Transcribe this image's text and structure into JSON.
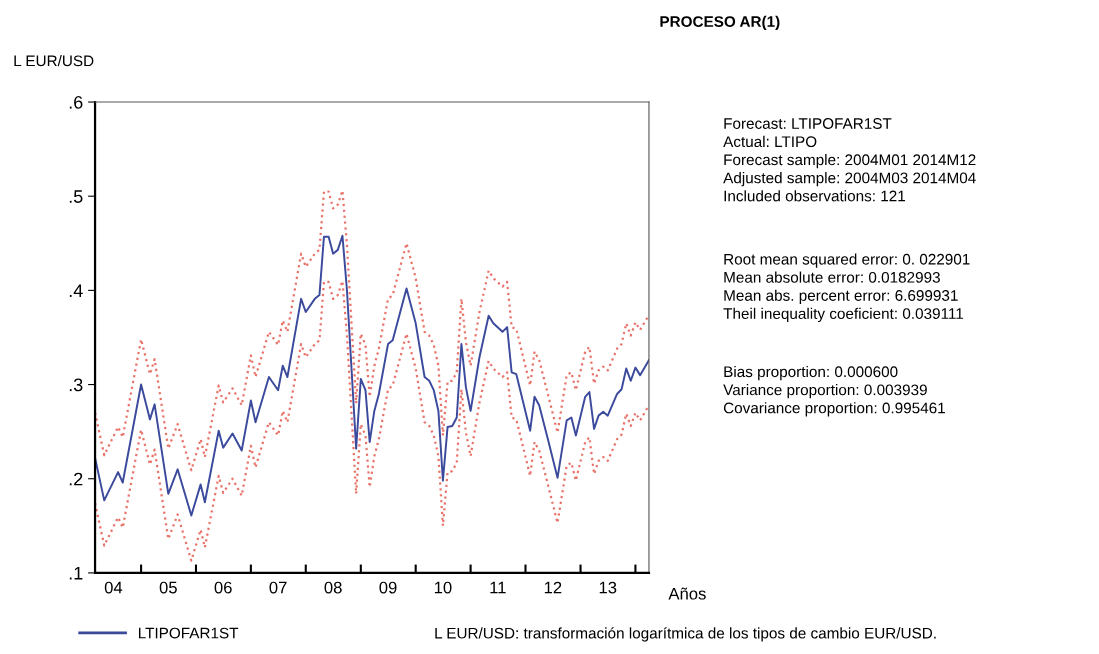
{
  "chart_data": {
    "type": "line",
    "title": "PROCESO AR(1)",
    "ylabel": "L EUR/USD",
    "xlabel": "Años",
    "x": [
      "2004-03",
      "2004-05",
      "2004-08",
      "2004-09",
      "2005-01",
      "2005-03",
      "2005-04",
      "2005-07",
      "2005-09",
      "2005-12",
      "2006-02",
      "2006-03",
      "2006-06",
      "2006-07",
      "2006-09",
      "2006-11",
      "2007-01",
      "2007-02",
      "2007-05",
      "2007-07",
      "2007-08",
      "2007-09",
      "2007-12",
      "2008-01",
      "2008-03",
      "2008-04",
      "2008-05",
      "2008-06",
      "2008-07",
      "2008-08",
      "2008-09",
      "2008-10",
      "2008-12",
      "2009-01",
      "2009-02",
      "2009-03",
      "2009-04",
      "2009-05",
      "2009-07",
      "2009-08",
      "2009-11",
      "2010-01",
      "2010-03",
      "2010-04",
      "2010-05",
      "2010-06",
      "2010-07",
      "2010-08",
      "2010-09",
      "2010-10",
      "2010-11",
      "2010-12",
      "2011-01",
      "2011-03",
      "2011-05",
      "2011-06",
      "2011-08",
      "2011-09",
      "2011-10",
      "2011-11",
      "2012-02",
      "2012-03",
      "2012-04",
      "2012-06",
      "2012-08",
      "2012-10",
      "2012-11",
      "2012-12",
      "2013-02",
      "2013-03",
      "2013-04",
      "2013-05",
      "2013-06",
      "2013-07",
      "2013-09",
      "2013-10",
      "2013-11",
      "2013-12",
      "2014-01",
      "2014-02",
      "2014-04"
    ],
    "series": [
      {
        "name": "LTIPOFAR1ST",
        "color": "#3b4a9c",
        "line_style": "solid",
        "values": [
          0.222,
          0.177,
          0.207,
          0.196,
          0.3,
          0.263,
          0.279,
          0.184,
          0.21,
          0.161,
          0.194,
          0.175,
          0.251,
          0.233,
          0.248,
          0.23,
          0.283,
          0.26,
          0.308,
          0.294,
          0.32,
          0.308,
          0.391,
          0.377,
          0.391,
          0.395,
          0.457,
          0.457,
          0.439,
          0.443,
          0.458,
          0.4,
          0.232,
          0.306,
          0.294,
          0.239,
          0.272,
          0.29,
          0.343,
          0.347,
          0.402,
          0.365,
          0.308,
          0.304,
          0.294,
          0.272,
          0.198,
          0.255,
          0.256,
          0.265,
          0.343,
          0.297,
          0.272,
          0.329,
          0.373,
          0.365,
          0.356,
          0.361,
          0.313,
          0.311,
          0.251,
          0.287,
          0.278,
          0.24,
          0.201,
          0.262,
          0.265,
          0.246,
          0.287,
          0.292,
          0.253,
          0.267,
          0.271,
          0.267,
          0.29,
          0.295,
          0.317,
          0.304,
          0.318,
          0.31,
          0.326
        ]
      },
      {
        "color": "#e8736a",
        "line_style": "dotted",
        "values": [
          0.27,
          0.225,
          0.255,
          0.244,
          0.348,
          0.311,
          0.327,
          0.232,
          0.258,
          0.209,
          0.242,
          0.223,
          0.299,
          0.281,
          0.296,
          0.278,
          0.331,
          0.308,
          0.356,
          0.342,
          0.368,
          0.356,
          0.439,
          0.425,
          0.439,
          0.443,
          0.505,
          0.505,
          0.487,
          0.491,
          0.506,
          0.448,
          0.28,
          0.354,
          0.342,
          0.287,
          0.32,
          0.338,
          0.391,
          0.395,
          0.45,
          0.413,
          0.356,
          0.352,
          0.342,
          0.32,
          0.246,
          0.303,
          0.304,
          0.313,
          0.391,
          0.345,
          0.32,
          0.377,
          0.421,
          0.413,
          0.404,
          0.409,
          0.361,
          0.359,
          0.299,
          0.335,
          0.326,
          0.288,
          0.249,
          0.31,
          0.313,
          0.294,
          0.335,
          0.34,
          0.301,
          0.315,
          0.319,
          0.315,
          0.338,
          0.343,
          0.365,
          0.352,
          0.366,
          0.358,
          0.374
        ]
      },
      {
        "color": "#e8736a",
        "line_style": "dotted",
        "values": [
          0.174,
          0.129,
          0.159,
          0.148,
          0.252,
          0.215,
          0.231,
          0.136,
          0.162,
          0.113,
          0.146,
          0.127,
          0.203,
          0.185,
          0.2,
          0.182,
          0.235,
          0.212,
          0.26,
          0.246,
          0.272,
          0.26,
          0.343,
          0.329,
          0.343,
          0.347,
          0.409,
          0.409,
          0.391,
          0.395,
          0.41,
          0.352,
          0.184,
          0.258,
          0.246,
          0.191,
          0.224,
          0.242,
          0.295,
          0.299,
          0.354,
          0.317,
          0.26,
          0.256,
          0.246,
          0.224,
          0.15,
          0.207,
          0.208,
          0.217,
          0.295,
          0.249,
          0.224,
          0.281,
          0.325,
          0.317,
          0.308,
          0.313,
          0.265,
          0.263,
          0.203,
          0.239,
          0.23,
          0.192,
          0.153,
          0.214,
          0.217,
          0.198,
          0.239,
          0.244,
          0.205,
          0.219,
          0.223,
          0.219,
          0.242,
          0.247,
          0.269,
          0.256,
          0.27,
          0.262,
          0.278
        ]
      }
    ],
    "xlim": [
      "2004-03",
      "2014-04"
    ],
    "xticks": [
      {
        "value": "2004-07",
        "label": "04"
      },
      {
        "value": "2005-01",
        "label": null
      },
      {
        "value": "2005-07",
        "label": "05"
      },
      {
        "value": "2006-01",
        "label": null
      },
      {
        "value": "2006-07",
        "label": "06"
      },
      {
        "value": "2007-01",
        "label": null
      },
      {
        "value": "2007-07",
        "label": "07"
      },
      {
        "value": "2008-01",
        "label": null
      },
      {
        "value": "2008-07",
        "label": "08"
      },
      {
        "value": "2009-01",
        "label": null
      },
      {
        "value": "2009-07",
        "label": "09"
      },
      {
        "value": "2010-01",
        "label": null
      },
      {
        "value": "2010-07",
        "label": "10"
      },
      {
        "value": "2011-01",
        "label": null
      },
      {
        "value": "2011-07",
        "label": "11"
      },
      {
        "value": "2012-01",
        "label": null
      },
      {
        "value": "2012-07",
        "label": "12"
      },
      {
        "value": "2013-01",
        "label": null
      },
      {
        "value": "2013-07",
        "label": "13"
      },
      {
        "value": "2014-01",
        "label": null
      }
    ],
    "ylim": [
      0.1,
      0.6
    ],
    "yticks": [
      {
        "value": 0.1,
        "label": ".1"
      },
      {
        "value": 0.2,
        "label": ".2"
      },
      {
        "value": 0.3,
        "label": ".3"
      },
      {
        "value": 0.4,
        "label": ".4"
      },
      {
        "value": 0.5,
        "label": ".5"
      },
      {
        "value": 0.6,
        "label": ".6"
      }
    ],
    "grid": false,
    "legend": "bottom left",
    "annotations": [
      "Forecast: LTIPOFAR1ST\nActual: LTIPO\nForecast sample: 2004M01 2014M12\nAdjusted sample: 2004M03 2014M04\nIncluded observations: 121",
      "Root mean squared error: 0. 022901\nMean absolute error: 0.0182993\nMean abs. percent error: 6.699931\nTheil inequality coeficient: 0.039111",
      "Bias proportion: 0.000600\nVariance proportion: 0.003939\nCovariance proportion: 0.995461",
      "L EUR/USD: transformación logarítmica de los tipos de cambio EUR/USD."
    ]
  }
}
